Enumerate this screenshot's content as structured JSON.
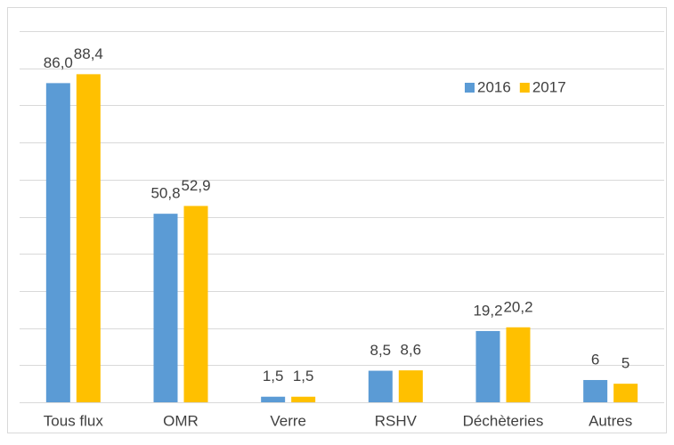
{
  "chart_data": {
    "type": "bar",
    "categories": [
      "Tous flux",
      "OMR",
      "Verre",
      "RSHV",
      "Déchèteries",
      "Autres"
    ],
    "series": [
      {
        "name": "2016",
        "color": "#5b9bd5",
        "values": [
          86.0,
          50.8,
          1.5,
          8.5,
          19.2,
          6
        ],
        "value_labels": [
          "86,0",
          "50,8",
          "1,5",
          "8,5",
          "19,2",
          "6"
        ]
      },
      {
        "name": "2017",
        "color": "#ffc000",
        "values": [
          88.4,
          52.9,
          1.5,
          8.6,
          20.2,
          5
        ],
        "value_labels": [
          "88,4",
          "52,9",
          "1,5",
          "8,6",
          "20,2",
          "5"
        ]
      }
    ],
    "ylim": [
      0,
      100
    ],
    "yticks": [
      0,
      10,
      20,
      30,
      40,
      50,
      60,
      70,
      80,
      90,
      100
    ],
    "grid": true,
    "legend": "upper right"
  }
}
